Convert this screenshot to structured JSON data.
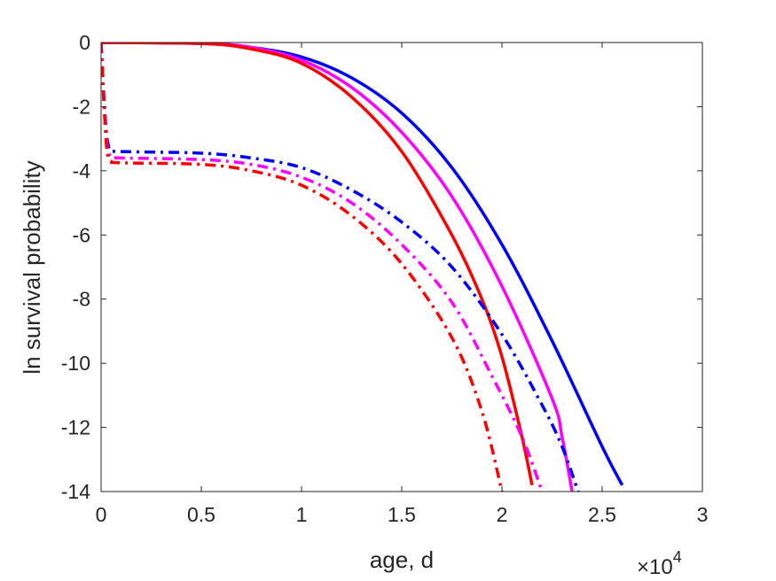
{
  "chart_data": {
    "type": "line",
    "xlabel": "age, d",
    "ylabel": "ln survival probability",
    "x_exponent_label": "×10",
    "x_exponent_power": "4",
    "xlim": [
      0,
      30000
    ],
    "ylim": [
      -14,
      0
    ],
    "x_ticks": [
      0,
      5000,
      10000,
      15000,
      20000,
      25000,
      30000
    ],
    "x_tick_labels": [
      "0",
      "0.5",
      "1",
      "1.5",
      "2",
      "2.5",
      "3"
    ],
    "y_ticks": [
      0,
      -2,
      -4,
      -6,
      -8,
      -10,
      -12,
      -14
    ],
    "y_tick_labels": [
      "0",
      "-2",
      "-4",
      "-6",
      "-8",
      "-10",
      "-12",
      "-14"
    ],
    "grid": false,
    "series": [
      {
        "color": "#0000ff",
        "style": "solid",
        "x": [
          0,
          5000,
          7500,
          10000,
          12500,
          15000,
          17500,
          20000,
          22500,
          25000,
          26000
        ],
        "y": [
          0,
          -0.03,
          -0.15,
          -0.45,
          -1.1,
          -2.2,
          -3.9,
          -6.3,
          -9.3,
          -12.6,
          -13.8
        ]
      },
      {
        "color": "#ff00ff",
        "style": "solid",
        "x": [
          0,
          5000,
          7500,
          10000,
          12500,
          15000,
          17500,
          20000,
          22500,
          23000,
          23500
        ],
        "y": [
          0,
          -0.03,
          -0.15,
          -0.55,
          -1.4,
          -2.8,
          -4.8,
          -7.6,
          -11.1,
          -12.3,
          -14
        ]
      },
      {
        "color": "#ff0000",
        "style": "solid",
        "x": [
          0,
          5000,
          7500,
          10000,
          12500,
          15000,
          17500,
          19000,
          20000,
          21000,
          21500
        ],
        "y": [
          0,
          -0.03,
          -0.2,
          -0.65,
          -1.7,
          -3.4,
          -6.0,
          -8.0,
          -9.8,
          -12.3,
          -13.8
        ]
      },
      {
        "color": "#0000ff",
        "style": "dashdot",
        "x": [
          0,
          150,
          300,
          500,
          1000,
          5000,
          7500,
          10000,
          12500,
          15000,
          17500,
          20000,
          22000,
          23000,
          23800
        ],
        "y": [
          0,
          -1.8,
          -3.0,
          -3.35,
          -3.4,
          -3.45,
          -3.6,
          -3.9,
          -4.6,
          -5.6,
          -7.0,
          -9.1,
          -11.3,
          -12.6,
          -14
        ]
      },
      {
        "color": "#ff00ff",
        "style": "dashdot",
        "x": [
          0,
          150,
          300,
          500,
          1000,
          5000,
          7500,
          10000,
          12500,
          15000,
          17500,
          19500,
          21000,
          22000
        ],
        "y": [
          0,
          -1.9,
          -3.2,
          -3.55,
          -3.6,
          -3.65,
          -3.8,
          -4.2,
          -5.0,
          -6.3,
          -8.1,
          -10.4,
          -12.3,
          -14
        ]
      },
      {
        "color": "#ff0000",
        "style": "dashdot",
        "x": [
          0,
          150,
          300,
          500,
          1000,
          5000,
          7500,
          10000,
          12500,
          15000,
          17500,
          19000,
          20000
        ],
        "y": [
          0,
          -2.0,
          -3.4,
          -3.7,
          -3.75,
          -3.8,
          -4.0,
          -4.45,
          -5.4,
          -6.9,
          -9.2,
          -11.5,
          -14
        ]
      }
    ]
  }
}
